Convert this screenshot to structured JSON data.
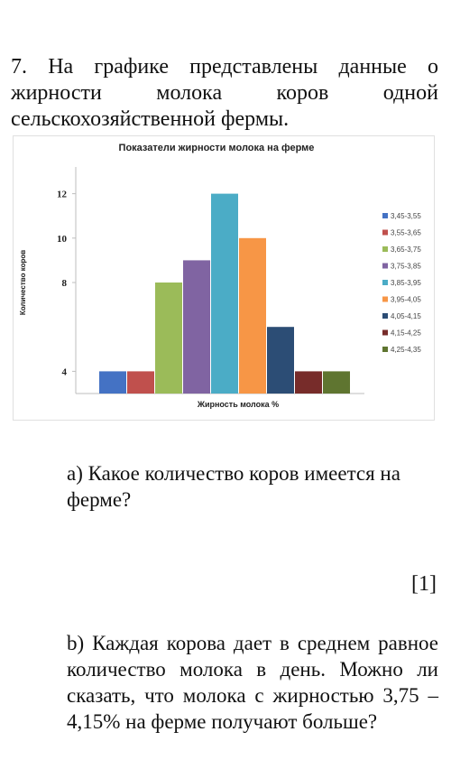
{
  "problem": {
    "number": "7.",
    "text": "На графике представлены данные о жирности молока коров одной сельскохозяйственной фермы."
  },
  "chart_data": {
    "type": "bar",
    "title": "Показатели жирности молока на ферме",
    "xlabel": "Жирность молока %",
    "ylabel": "Количество коров",
    "ylim": [
      3,
      13
    ],
    "yticks": [
      4,
      8,
      10,
      12
    ],
    "grid": false,
    "legend_position": "right",
    "categories": [
      "3,45-3,55",
      "3,55-3,65",
      "3,65-3,75",
      "3,75-3,85",
      "3,85-3,95",
      "3,95-4,05",
      "4,05-4,15",
      "4,15-4,25",
      "4,25-4,35"
    ],
    "values": [
      4,
      4,
      8,
      9,
      12,
      10,
      6,
      4,
      4
    ],
    "colors": [
      "#4472c4",
      "#c0504d",
      "#9bbb59",
      "#8064a2",
      "#4bacc6",
      "#f79646",
      "#2c4d75",
      "#772c2a",
      "#5f7530"
    ]
  },
  "questions": {
    "a": {
      "label": "a)",
      "text": "Какое количество коров имеется на ферме?",
      "marks": "[1]"
    },
    "b": {
      "label": "b)",
      "text": "Каждая корова дает в среднем равное количество молока в день. Можно ли сказать, что молока с жирностью 3,75 – 4,15% на ферме получают больше?"
    }
  }
}
